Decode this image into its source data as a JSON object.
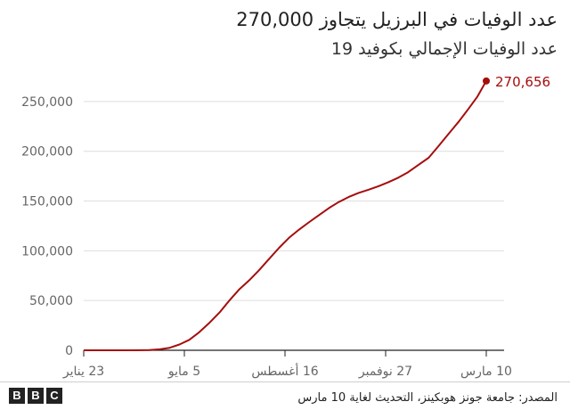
{
  "title": "عدد الوفيات في البرزيل يتجاوز 270,000",
  "subtitle": "عدد الوفيات الإجمالي بكوفيد 19",
  "source": "المصدر: جامعة جونز هوبكينز، التحديث لغاية 10 مارس",
  "logo_letters": [
    "B",
    "B",
    "C"
  ],
  "colors": {
    "line": "#a50d0d",
    "grid": "#dedede",
    "axis": "#222222",
    "tick_text": "#666666"
  },
  "chart_data": {
    "type": "line",
    "title": "عدد الوفيات في البرزيل يتجاوز 270,000",
    "subtitle": "عدد الوفيات الإجمالي بكوفيد 19",
    "xlabel": "",
    "ylabel": "",
    "xlim": [
      "2020-01-23",
      "2021-03-10"
    ],
    "ylim": [
      0,
      270656
    ],
    "grid": true,
    "y_ticks": [
      0,
      50000,
      100000,
      150000,
      200000,
      250000
    ],
    "y_tick_labels": [
      "0",
      "50,000",
      "100,000",
      "150,000",
      "200,000",
      "250,000"
    ],
    "x_ticks": [
      "2020-01-23",
      "2020-05-05",
      "2020-08-16",
      "2020-11-27",
      "2021-03-10"
    ],
    "x_tick_labels": [
      "23 يناير",
      "5 مايو",
      "16 أغسطس",
      "27 نوفمبر",
      "10 مارس"
    ],
    "series": [
      {
        "x": [
          "2020-01-23",
          "2020-03-13",
          "2020-03-30",
          "2020-04-10",
          "2020-04-20",
          "2020-04-30",
          "2020-05-10",
          "2020-05-20",
          "2020-05-30",
          "2020-06-10",
          "2020-06-20",
          "2020-06-30",
          "2020-07-10",
          "2020-07-20",
          "2020-07-30",
          "2020-08-10",
          "2020-08-20",
          "2020-08-30",
          "2020-09-10",
          "2020-09-20",
          "2020-09-30",
          "2020-10-10",
          "2020-10-20",
          "2020-10-30",
          "2020-11-10",
          "2020-11-20",
          "2020-11-30",
          "2020-12-10",
          "2020-12-20",
          "2020-12-30",
          "2021-01-10",
          "2021-01-20",
          "2021-01-30",
          "2021-02-10",
          "2021-02-20",
          "2021-03-01",
          "2021-03-10"
        ],
        "y": [
          0,
          0,
          200,
          1000,
          2500,
          5800,
          10500,
          18000,
          27000,
          38000,
          50000,
          61000,
          70000,
          80000,
          91000,
          103000,
          113000,
          121000,
          129000,
          136000,
          143000,
          149000,
          154000,
          158000,
          161500,
          165000,
          169000,
          173500,
          179000,
          186000,
          193500,
          205000,
          217000,
          230000,
          243000,
          255000,
          270656
        ]
      }
    ],
    "annotation": {
      "x": "2021-03-10",
      "y": 270656,
      "label": "270,656"
    }
  }
}
